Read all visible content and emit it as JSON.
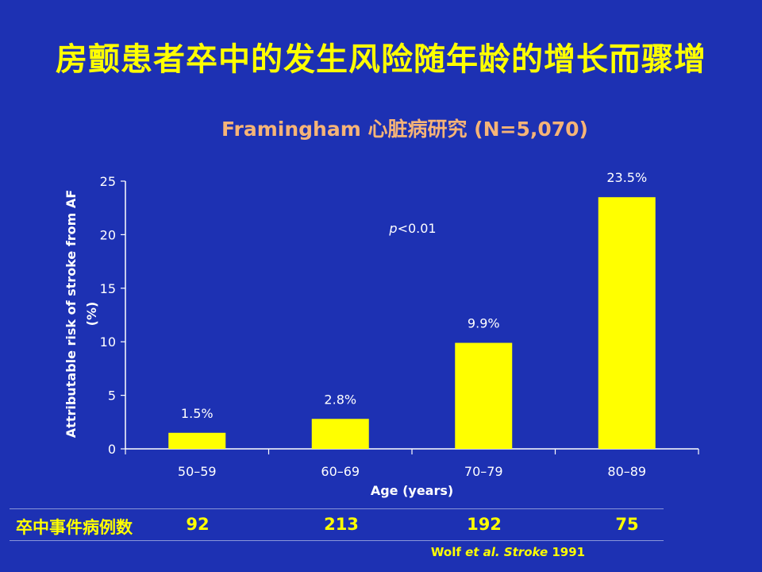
{
  "slide": {
    "title": "房颤患者卒中的发生风险随年龄的增长而骤增",
    "chart_title": "Framingham 心脏病研究 (N=5,070)"
  },
  "chart_data": {
    "type": "bar",
    "categories": [
      "50–59",
      "60–69",
      "70–79",
      "80–89"
    ],
    "values": [
      1.5,
      2.8,
      9.9,
      23.5
    ],
    "data_labels": [
      "1.5%",
      "2.8%",
      "9.9%",
      "23.5%"
    ],
    "xlabel": "Age (years)",
    "ylabel": "Attributable risk of stroke from AF (%)",
    "ylim": [
      0,
      25
    ],
    "yticks": [
      0,
      5,
      10,
      15,
      20,
      25
    ],
    "annotation": {
      "italic": "p",
      "rest": "<0.01"
    },
    "grid": false,
    "bar_color": "#ffff00",
    "text_color": "#ffffff"
  },
  "table": {
    "label": "卒中事件病例数",
    "counts": [
      "92",
      "213",
      "192",
      "75"
    ]
  },
  "citation": {
    "author": "Wolf",
    "etal": " et al. Stroke",
    "year": " 1991"
  },
  "colors": {
    "background": "#1d31b3",
    "title": "#ffff00",
    "chart_title": "#f6b477"
  }
}
